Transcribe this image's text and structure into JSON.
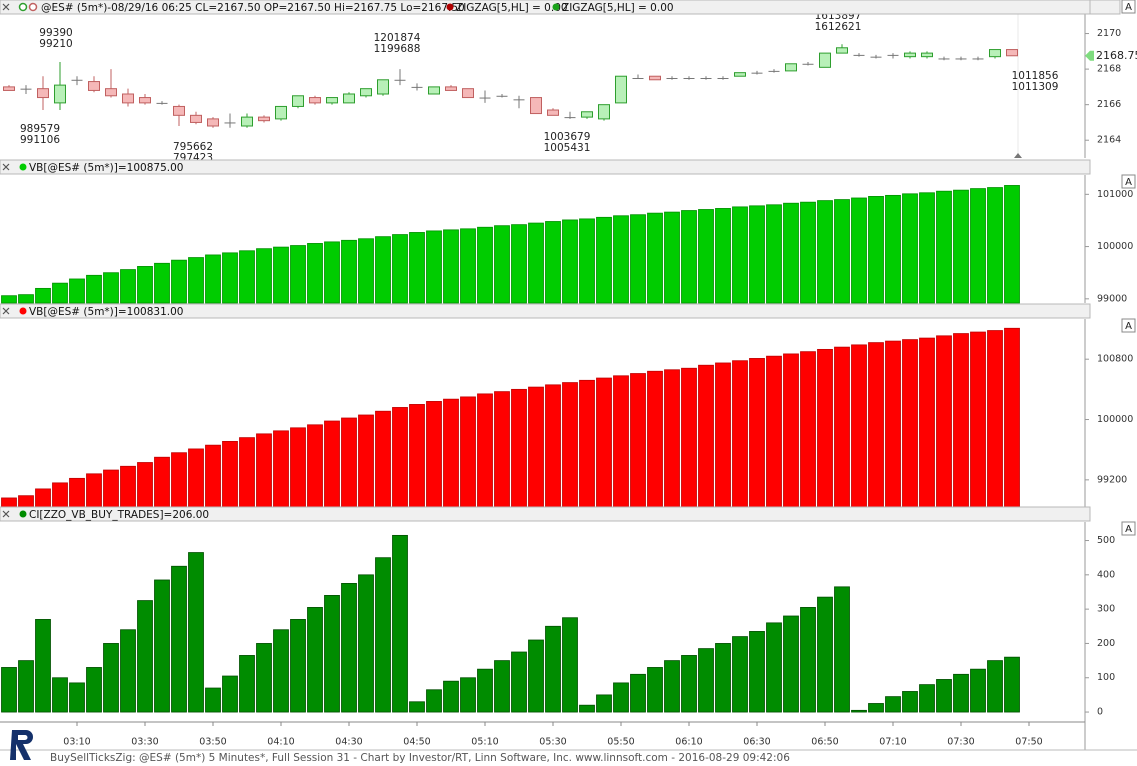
{
  "chart_data": [
    {
      "type": "candlestick",
      "title": "@ES# (5m*)-08/29/16 06:25 CL=2167.50 OP=2167.50 Hi=2167.75 Lo=2167.50",
      "indicators": [
        {
          "name": "ZIGZAG[5,HL] = 0.00",
          "color": "#b00000"
        },
        {
          "name": "ZIGZAG[5,HL] = 0.00",
          "color": "#1aa31a"
        }
      ],
      "up_color": "#b8f0b8",
      "up_edge": "#2e9e2e",
      "down_color": "#f5b8b8",
      "down_edge": "#c06060",
      "flat_color": "#777777",
      "open": [
        2167.0,
        2166.9,
        2166.9,
        2166.1,
        2167.4,
        2167.3,
        2166.9,
        2166.6,
        2166.4,
        2166.1,
        2165.9,
        2165.4,
        2165.2,
        2165.0,
        2164.8,
        2165.3,
        2165.2,
        2165.9,
        2166.4,
        2166.1,
        2166.1,
        2166.5,
        2166.6,
        2167.4,
        2167.0,
        2166.6,
        2167.0,
        2166.9,
        2166.4,
        2166.5,
        2166.3,
        2166.4,
        2165.7,
        2165.3,
        2165.3,
        2165.2,
        2166.1,
        2167.5,
        2167.6,
        2167.5,
        2167.5,
        2167.5,
        2167.5,
        2167.6,
        2167.8,
        2167.9,
        2167.9,
        2168.3,
        2168.1,
        2168.9,
        2168.8,
        2168.7,
        2168.8,
        2168.7,
        2168.7,
        2168.6,
        2168.6,
        2168.6,
        2168.7,
        2169.1
      ],
      "high": [
        2167.1,
        2167.1,
        2167.6,
        2168.4,
        2167.6,
        2167.6,
        2168.0,
        2166.9,
        2166.6,
        2166.2,
        2166.0,
        2165.6,
        2165.3,
        2165.5,
        2165.5,
        2165.4,
        2165.9,
        2166.5,
        2166.5,
        2166.4,
        2166.7,
        2166.9,
        2167.4,
        2168.0,
        2167.2,
        2167.0,
        2167.1,
        2166.9,
        2166.8,
        2166.6,
        2166.5,
        2166.4,
        2165.8,
        2165.6,
        2165.6,
        2166.0,
        2167.6,
        2167.7,
        2167.6,
        2167.6,
        2167.6,
        2167.6,
        2167.6,
        2167.8,
        2167.9,
        2168.0,
        2168.3,
        2168.4,
        2168.9,
        2169.4,
        2168.9,
        2168.8,
        2168.9,
        2169.0,
        2169.0,
        2168.7,
        2168.7,
        2168.7,
        2169.1,
        2169.1
      ],
      "low": [
        2166.8,
        2166.6,
        2165.7,
        2165.7,
        2167.1,
        2166.7,
        2166.4,
        2165.9,
        2166.0,
        2166.0,
        2164.8,
        2164.9,
        2164.7,
        2164.7,
        2164.7,
        2165.0,
        2165.1,
        2165.8,
        2166.0,
        2166.0,
        2166.1,
        2166.4,
        2166.5,
        2167.1,
        2166.8,
        2166.6,
        2166.8,
        2166.4,
        2166.1,
        2166.4,
        2165.8,
        2165.5,
        2165.4,
        2165.2,
        2165.2,
        2165.1,
        2166.1,
        2167.5,
        2167.4,
        2167.4,
        2167.4,
        2167.4,
        2167.4,
        2167.6,
        2167.7,
        2167.8,
        2167.9,
        2168.2,
        2168.1,
        2168.9,
        2168.7,
        2168.6,
        2168.6,
        2168.6,
        2168.6,
        2168.5,
        2168.5,
        2168.5,
        2168.6,
        2168.75
      ],
      "close": [
        2166.8,
        2166.9,
        2166.4,
        2167.1,
        2167.4,
        2166.8,
        2166.5,
        2166.1,
        2166.1,
        2166.1,
        2165.4,
        2165.0,
        2164.8,
        2165.0,
        2165.3,
        2165.1,
        2165.9,
        2166.5,
        2166.1,
        2166.4,
        2166.6,
        2166.9,
        2167.4,
        2167.4,
        2167.0,
        2167.0,
        2166.8,
        2166.4,
        2166.4,
        2166.5,
        2166.3,
        2165.5,
        2165.4,
        2165.3,
        2165.6,
        2166.0,
        2167.6,
        2167.5,
        2167.4,
        2167.5,
        2167.5,
        2167.5,
        2167.5,
        2167.8,
        2167.8,
        2167.9,
        2168.3,
        2168.3,
        2168.9,
        2169.2,
        2168.8,
        2168.7,
        2168.8,
        2168.9,
        2168.9,
        2168.6,
        2168.6,
        2168.6,
        2169.1,
        2168.75
      ],
      "last_price": 2168.75,
      "last_price_color": "#7fdc7f",
      "annotations": [
        [
          {
            "text": "99390",
            "color": "#1f9a1f"
          },
          {
            "text": "99210",
            "color": "#a00000"
          }
        ],
        [
          {
            "text": "989579",
            "color": "#a00000"
          },
          {
            "text": "991106",
            "color": "#1f9a1f"
          }
        ],
        [
          {
            "text": "795662",
            "color": "#a00000"
          },
          {
            "text": "797423",
            "color": "#1f9a1f"
          }
        ],
        [
          {
            "text": "1201874",
            "color": "#1f9a1f"
          },
          {
            "text": "1199688",
            "color": "#a00000"
          }
        ],
        [
          {
            "text": "1003679",
            "color": "#a00000"
          },
          {
            "text": "1005431",
            "color": "#1f9a1f"
          }
        ],
        [
          {
            "text": "1613897",
            "color": "#1f9a1f"
          },
          {
            "text": "1612621",
            "color": "#a00000"
          }
        ],
        [
          {
            "text": "1011856",
            "color": "#a00000"
          },
          {
            "text": "1011309",
            "color": "#1f9a1f"
          }
        ]
      ],
      "ylim": [
        2163.0,
        2171.1
      ],
      "yticks": [
        2164,
        2166,
        2168,
        2170
      ]
    },
    {
      "type": "bar",
      "title": "VB[@ES# (5m*)]=100875.00",
      "color": "#00cc00",
      "edge": "#009000",
      "values": [
        99060,
        99080,
        99200,
        99300,
        99380,
        99450,
        99500,
        99560,
        99620,
        99680,
        99740,
        99790,
        99840,
        99880,
        99920,
        99960,
        99990,
        100020,
        100060,
        100090,
        100120,
        100150,
        100190,
        100230,
        100270,
        100300,
        100320,
        100340,
        100370,
        100400,
        100420,
        100450,
        100480,
        100510,
        100530,
        100560,
        100590,
        100610,
        100640,
        100660,
        100690,
        100710,
        100730,
        100760,
        100780,
        100800,
        100830,
        100850,
        100880,
        100900,
        100930,
        100960,
        100980,
        101010,
        101030,
        101060,
        101080,
        101110,
        101130,
        101170
      ],
      "ylim": [
        98920,
        101370
      ],
      "yticks": [
        99000,
        100000,
        101000
      ]
    },
    {
      "type": "bar",
      "title": "VB[@ES# (5m*)]=100831.00",
      "color": "#ff0000",
      "edge": "#c00000",
      "values": [
        98960,
        98990,
        99080,
        99160,
        99220,
        99280,
        99330,
        99380,
        99430,
        99500,
        99560,
        99610,
        99660,
        99710,
        99760,
        99810,
        99850,
        99890,
        99930,
        99980,
        100020,
        100060,
        100110,
        100160,
        100200,
        100240,
        100270,
        100300,
        100340,
        100370,
        100400,
        100430,
        100460,
        100490,
        100520,
        100550,
        100580,
        100610,
        100640,
        100660,
        100680,
        100720,
        100750,
        100780,
        100810,
        100840,
        100870,
        100900,
        100930,
        100960,
        100990,
        101020,
        101040,
        101060,
        101080,
        101110,
        101140,
        101160,
        101180,
        101210
      ],
      "ylim": [
        98840,
        101333
      ],
      "yticks": [
        99200,
        100000,
        100800
      ]
    },
    {
      "type": "bar",
      "title": "CI[ZZO_VB_BUY_TRADES]=206.00",
      "color": "#008c00",
      "edge": "#004f00",
      "values": [
        130,
        150,
        270,
        100,
        85,
        130,
        200,
        240,
        325,
        385,
        425,
        465,
        70,
        105,
        165,
        200,
        240,
        270,
        305,
        340,
        375,
        400,
        450,
        515,
        30,
        65,
        90,
        100,
        125,
        150,
        175,
        210,
        250,
        275,
        20,
        50,
        85,
        110,
        130,
        150,
        165,
        185,
        200,
        220,
        235,
        260,
        280,
        305,
        335,
        365,
        5,
        25,
        45,
        60,
        80,
        95,
        110,
        125,
        150,
        160
      ],
      "ylim": [
        -29,
        554
      ],
      "yticks": [
        0,
        100,
        200,
        300,
        400,
        500
      ],
      "xticks": [
        "03:10",
        "03:30",
        "03:50",
        "04:10",
        "04:30",
        "04:50",
        "05:10",
        "05:30",
        "05:50",
        "06:10",
        "06:30",
        "06:50",
        "07:10",
        "07:30",
        "07:50"
      ]
    }
  ],
  "button_label": "A",
  "footer": "BuySellTicksZig: @ES# (5m*) 5 Minutes*, Full Session 31 - Chart by Investor/RT, Linn Software, Inc. www.linnsoft.com - 2016-08-29 09:42:06"
}
